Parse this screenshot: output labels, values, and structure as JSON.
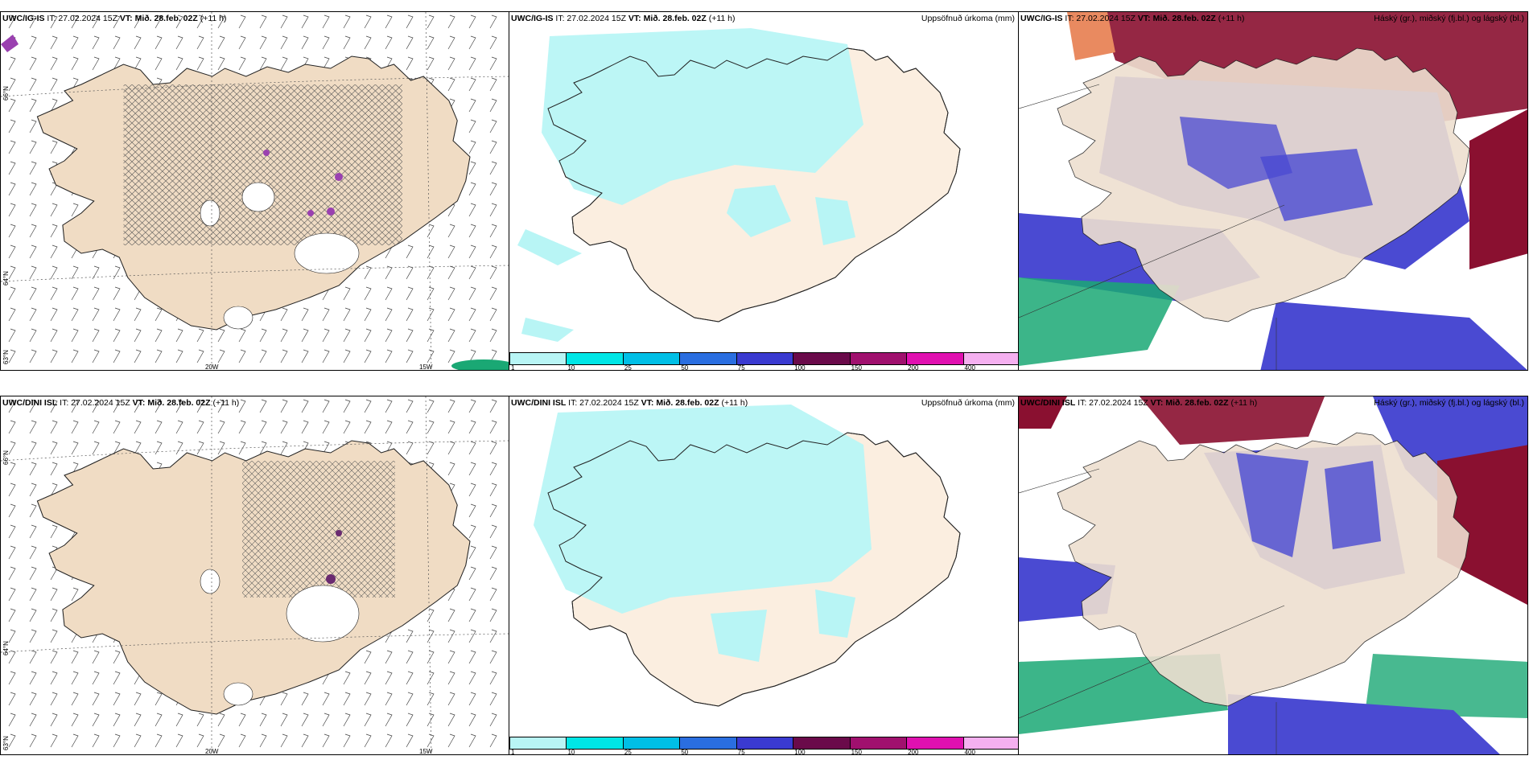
{
  "rows": [
    {
      "model": "UWC/IG-IS",
      "panels": [
        {
          "model": "UWC/IG-IS",
          "it": "IT: 27.02.2024 15Z",
          "vt_label": "VT:",
          "vt": "Mið. 28.feb. 02Z",
          "lead": "(+11 h)",
          "right_title": ""
        },
        {
          "model": "UWC/IG-IS",
          "it": "IT: 27.02.2024 15Z",
          "vt_label": "VT:",
          "vt": "Mið. 28.feb. 02Z",
          "lead": "(+11 h)",
          "right_title": "Uppsöfnuð úrkoma (mm)"
        },
        {
          "model": "UWC/IG-IS",
          "it": "IT: 27.02.2024 15Z",
          "vt_label": "VT:",
          "vt": "Mið. 28.feb. 02Z",
          "lead": "(+11 h)",
          "right_title": "Háský (gr.), miðský (fj.bl.) og lágský (bl.)"
        }
      ]
    },
    {
      "model": "UWC/DINI ISL",
      "panels": [
        {
          "model": "UWC/DINI ISL",
          "it": "IT: 27.02.2024 15Z",
          "vt_label": "VT:",
          "vt": "Mið. 28.feb. 02Z",
          "lead": "(+11 h)",
          "right_title": ""
        },
        {
          "model": "UWC/DINI ISL",
          "it": "IT: 27.02.2024 15Z",
          "vt_label": "VT:",
          "vt": "Mið. 28.feb. 02Z",
          "lead": "(+11 h)",
          "right_title": "Uppsöfnuð úrkoma (mm)"
        },
        {
          "model": "UWC/DINI ISL",
          "it": "IT: 27.02.2024 15Z",
          "vt_label": "VT:",
          "vt": "Mið. 28.feb. 02Z",
          "lead": "(+11 h)",
          "right_title": "Háský (gr.), miðský (fj.bl.) og lágský (bl.)"
        }
      ]
    }
  ],
  "axis_labels": {
    "lat66": "66°N",
    "lat64": "64°N",
    "lat63": "63°N",
    "lon20": "20W",
    "lon15": "15W"
  },
  "precip_legend": {
    "ticks": [
      "1",
      "10",
      "25",
      "50",
      "75",
      "100",
      "150",
      "200",
      "400"
    ],
    "colors": [
      "#b8f5f5",
      "#00e6e6",
      "#00bfe6",
      "#2a6ee0",
      "#3a3ad0",
      "#6a0a4a",
      "#a0106e",
      "#e010b0",
      "#f5b0f0"
    ]
  },
  "colors": {
    "land": "#f0dcc4",
    "cloud_land": "#eedfd0",
    "precip_light": "#b8f5f5",
    "low_cloud": "#4a4ad2",
    "mid_cloud": "#1aa874",
    "high_cloud": "#8a1030",
    "white": "#ffffff"
  }
}
